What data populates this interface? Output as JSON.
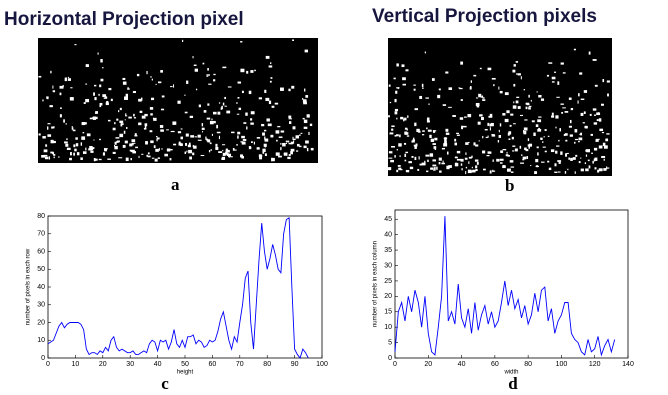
{
  "images": [
    {
      "title": "Horizontal Projection pixel",
      "label": "a"
    },
    {
      "title": "Vertical Projection pixels",
      "label": "b"
    }
  ],
  "chart_data": [
    {
      "type": "line",
      "panel_label": "c",
      "xlabel": "height",
      "ylabel": "number of pixels in each row",
      "x": [
        0,
        1,
        2,
        3,
        4,
        5,
        6,
        7,
        8,
        9,
        10,
        11,
        12,
        13,
        14,
        15,
        16,
        17,
        18,
        19,
        20,
        21,
        22,
        23,
        24,
        25,
        26,
        27,
        28,
        29,
        30,
        31,
        32,
        33,
        34,
        35,
        36,
        37,
        38,
        39,
        40,
        41,
        42,
        43,
        44,
        45,
        46,
        47,
        48,
        49,
        50,
        51,
        52,
        53,
        54,
        55,
        56,
        57,
        58,
        59,
        60,
        61,
        62,
        63,
        64,
        65,
        66,
        67,
        68,
        69,
        70,
        71,
        72,
        73,
        74,
        75,
        76,
        77,
        78,
        79,
        80,
        81,
        82,
        83,
        84,
        85,
        86,
        87,
        88,
        89,
        90,
        91,
        92,
        93,
        94,
        95
      ],
      "series": [
        {
          "color": "#0000ff",
          "values": [
            8,
            9,
            10,
            14,
            18,
            20,
            17,
            19,
            20,
            20,
            20,
            20,
            19,
            16,
            5,
            2,
            3,
            3,
            2,
            4,
            3,
            6,
            4,
            10,
            12,
            6,
            4,
            5,
            4,
            3,
            3,
            4,
            2,
            2,
            3,
            4,
            3,
            8,
            10,
            9,
            4,
            10,
            9,
            10,
            5,
            9,
            16,
            8,
            6,
            10,
            6,
            12,
            12,
            13,
            8,
            10,
            9,
            6,
            7,
            10,
            9,
            10,
            15,
            22,
            26,
            18,
            10,
            5,
            12,
            9,
            20,
            30,
            45,
            49,
            20,
            5,
            30,
            55,
            76,
            60,
            50,
            56,
            64,
            58,
            50,
            48,
            70,
            78,
            79,
            40,
            5,
            2,
            0,
            5,
            3,
            0
          ]
        }
      ],
      "xlim": [
        0,
        100
      ],
      "xticks": [
        0,
        10,
        20,
        30,
        40,
        50,
        60,
        70,
        80,
        90,
        100
      ],
      "ylim": [
        0,
        80
      ],
      "yticks": [
        0,
        10,
        20,
        30,
        40,
        50,
        60,
        70,
        80
      ]
    },
    {
      "type": "line",
      "panel_label": "d",
      "xlabel": "width",
      "ylabel": "number of pixels in each column",
      "x": [
        0,
        2,
        4,
        6,
        8,
        10,
        12,
        14,
        16,
        18,
        20,
        22,
        24,
        26,
        28,
        30,
        32,
        34,
        36,
        38,
        40,
        42,
        44,
        46,
        48,
        50,
        52,
        54,
        56,
        58,
        60,
        62,
        64,
        66,
        68,
        70,
        72,
        74,
        76,
        78,
        80,
        82,
        84,
        86,
        88,
        90,
        92,
        94,
        96,
        98,
        100,
        102,
        104,
        106,
        108,
        110,
        112,
        114,
        116,
        118,
        120,
        122,
        124,
        126,
        128,
        130,
        132
      ],
      "series": [
        {
          "color": "#0000ff",
          "values": [
            2,
            15,
            18,
            12,
            20,
            15,
            22,
            18,
            10,
            20,
            8,
            2,
            1,
            10,
            20,
            46,
            12,
            15,
            11,
            24,
            13,
            10,
            16,
            8,
            18,
            9,
            14,
            17,
            11,
            15,
            10,
            12,
            18,
            25,
            17,
            22,
            16,
            19,
            13,
            17,
            11,
            14,
            21,
            15,
            22,
            23,
            12,
            16,
            8,
            12,
            14,
            18,
            18,
            8,
            6,
            5,
            2,
            1,
            6,
            2,
            3,
            7,
            1,
            4,
            6,
            2,
            6
          ]
        }
      ],
      "xlim": [
        0,
        140
      ],
      "xticks": [
        0,
        20,
        40,
        60,
        80,
        100,
        120,
        140
      ],
      "ylim": [
        0,
        48
      ],
      "yticks": [
        0,
        5,
        10,
        15,
        20,
        25,
        30,
        35,
        40,
        45
      ]
    }
  ]
}
